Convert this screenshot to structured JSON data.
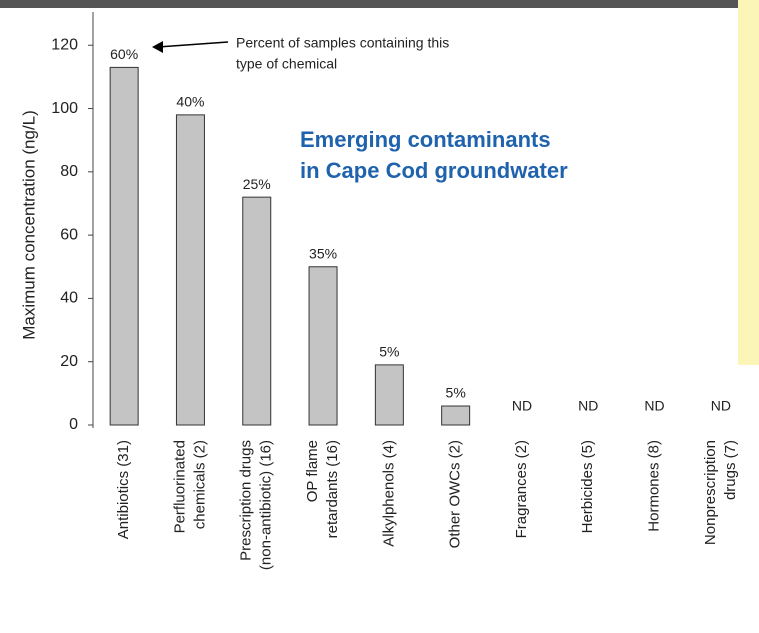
{
  "chart_data": {
    "type": "bar",
    "title": [
      "Emerging contaminants",
      "in Cape Cod groundwater"
    ],
    "y_label": "Maximum concentration (ng/L)",
    "annotation": [
      "Percent of samples containing this",
      "type of chemical"
    ],
    "categories": [
      [
        "Antibiotics (31)"
      ],
      [
        "Perfluorinated",
        "chemicals (2)"
      ],
      [
        "Prescription drugs",
        "(non-antibiotic) (16)"
      ],
      [
        "OP flame",
        "retardants (16)"
      ],
      [
        "Alkylphenols (4)"
      ],
      [
        "Other OWCs (2)"
      ],
      [
        "Fragrances (2)"
      ],
      [
        "Herbicides (5)"
      ],
      [
        "Hormones (8)"
      ],
      [
        "Nonprescription",
        "drugs (7)"
      ]
    ],
    "values": [
      113,
      98,
      72,
      50,
      19,
      6,
      null,
      null,
      null,
      null
    ],
    "sample_percent_labels": [
      "60%",
      "40%",
      "25%",
      "35%",
      "5%",
      "5%",
      "ND",
      "ND",
      "ND",
      "ND"
    ],
    "color": "#c4c4c4",
    "ylim": [
      0,
      130
    ],
    "yticks": [
      0,
      20,
      40,
      60,
      80,
      100,
      120
    ]
  }
}
